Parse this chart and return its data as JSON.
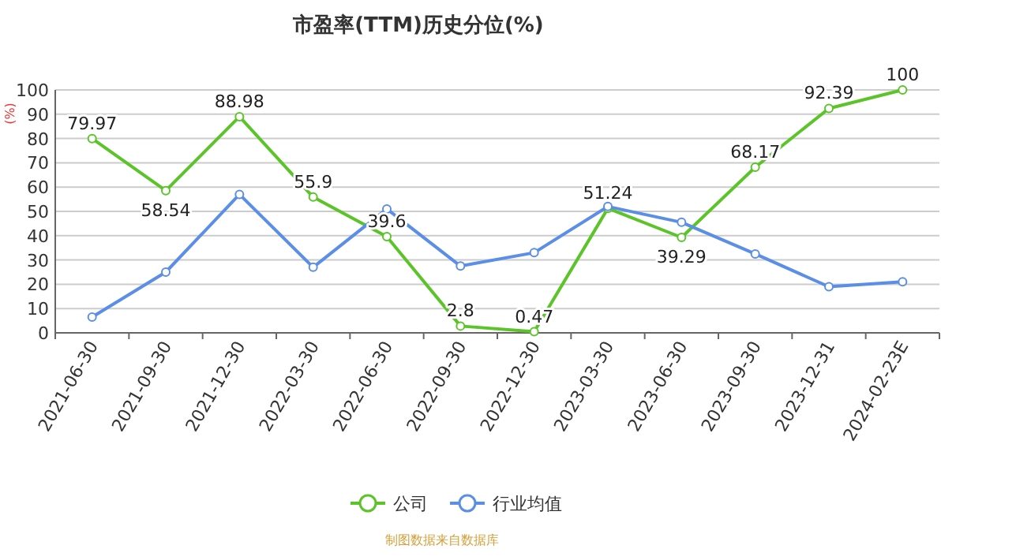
{
  "chart_data": {
    "type": "line",
    "title": "市盈率(TTM)历史分位(%)",
    "ylabel": "(%)",
    "categories": [
      "2021-06-30",
      "2021-09-30",
      "2021-12-30",
      "2022-03-30",
      "2022-06-30",
      "2022-09-30",
      "2022-12-30",
      "2023-03-30",
      "2023-06-30",
      "2023-09-30",
      "2023-12-31",
      "2024-02-23E"
    ],
    "series": [
      {
        "name": "公司",
        "color": "#5ac428",
        "values": [
          79.97,
          58.54,
          88.98,
          55.9,
          39.6,
          2.8,
          0.47,
          51.24,
          39.29,
          68.17,
          92.39,
          100
        ],
        "data_labels": true
      },
      {
        "name": "行业均值",
        "color": "#5b8ee6",
        "values": [
          6.5,
          25,
          57,
          27,
          51,
          27.5,
          33,
          52,
          45.5,
          32.5,
          19,
          21
        ]
      }
    ],
    "ylim": [
      0,
      100
    ],
    "yticks": [
      0,
      10,
      20,
      30,
      40,
      50,
      60,
      70,
      80,
      90,
      100
    ],
    "grid": "y",
    "legend": "bottom",
    "marker": "circle",
    "line_style": "solid",
    "annotations": [
      "制图数据来自数据库"
    ]
  }
}
